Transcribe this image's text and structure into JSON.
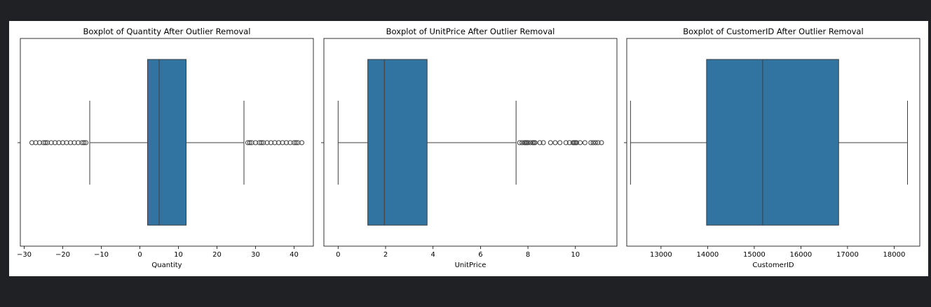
{
  "page": {
    "background": "#202124",
    "figure_background": "#ffffff"
  },
  "chart_data": [
    {
      "type": "boxplot",
      "title": "Boxplot of Quantity After Outlier Removal",
      "xlabel": "Quantity",
      "xlim": [
        -31,
        45
      ],
      "xticks": [
        -30,
        -20,
        -10,
        0,
        10,
        20,
        30,
        40
      ],
      "tick_labels": [
        "−30",
        "−20",
        "−10",
        "0",
        "10",
        "20",
        "30",
        "40"
      ],
      "box": {
        "whisker_low": -13,
        "q1": 2,
        "median": 5,
        "q3": 12,
        "whisker_high": 27
      },
      "outliers": [
        -28,
        -27,
        -26,
        -25,
        -24.5,
        -24,
        -23,
        -22,
        -21,
        -20,
        -19,
        -18,
        -17,
        -16,
        -15,
        -14.5,
        -14,
        28,
        28.5,
        29,
        30,
        31,
        31.5,
        32,
        33,
        34,
        35,
        36,
        37,
        38,
        39,
        40,
        40.5,
        41,
        42
      ],
      "color": "#3274a1"
    },
    {
      "type": "boxplot",
      "title": "Boxplot of UnitPrice After Outlier Removal",
      "xlabel": "UnitPrice",
      "xlim": [
        -0.6,
        11.75
      ],
      "xticks": [
        0,
        2,
        4,
        6,
        8,
        10
      ],
      "tick_labels": [
        "0",
        "2",
        "4",
        "6",
        "8",
        "10"
      ],
      "box": {
        "whisker_low": 0,
        "q1": 1.25,
        "median": 1.95,
        "q3": 3.75,
        "whisker_high": 7.5
      },
      "outliers": [
        7.65,
        7.75,
        7.85,
        7.9,
        7.95,
        8.0,
        8.1,
        8.2,
        8.25,
        8.3,
        8.5,
        8.65,
        8.95,
        9.15,
        9.35,
        9.6,
        9.75,
        9.9,
        9.95,
        10.0,
        10.05,
        10.2,
        10.4,
        10.65,
        10.75,
        10.85,
        10.95,
        11.1
      ],
      "color": "#3274a1"
    },
    {
      "type": "boxplot",
      "title": "Boxplot of CustomerID After Outlier Removal",
      "xlabel": "CustomerID",
      "xlim": [
        12265,
        18550
      ],
      "xticks": [
        13000,
        14000,
        15000,
        16000,
        17000,
        18000
      ],
      "tick_labels": [
        "13000",
        "14000",
        "15000",
        "16000",
        "17000",
        "18000"
      ],
      "box": {
        "whisker_low": 12346,
        "q1": 13977,
        "median": 15180,
        "q3": 16810,
        "whisker_high": 18287
      },
      "outliers": [],
      "color": "#3274a1"
    }
  ]
}
